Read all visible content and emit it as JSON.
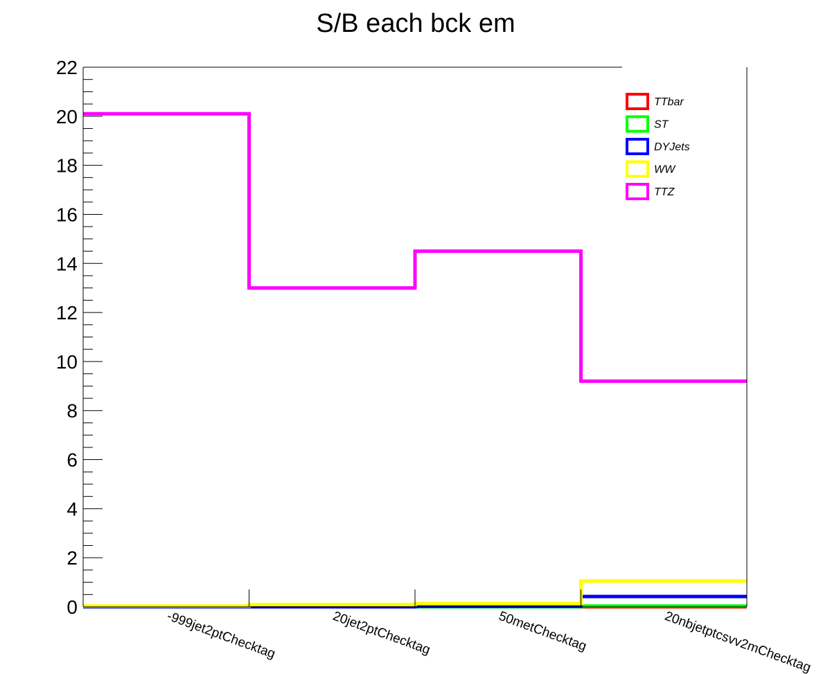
{
  "chart_data": {
    "type": "line",
    "title": "S/B each bck     em",
    "xlabel": "",
    "ylabel": "",
    "categories": [
      "-999jet2ptChecktag",
      "20jet2ptChecktag",
      "50metChecktag",
      "20nbjetptcsvv2mChecktag"
    ],
    "ylim": [
      0,
      22
    ],
    "yticks": [
      "0",
      "2",
      "4",
      "6",
      "8",
      "10",
      "12",
      "14",
      "16",
      "18",
      "20",
      "22"
    ],
    "grid": false,
    "legend_position": "top-right",
    "series": [
      {
        "name": "TTbar",
        "color": "#ff0000",
        "values": [
          0.0,
          0.0,
          0.0,
          0.0
        ]
      },
      {
        "name": "ST",
        "color": "#00ff00",
        "values": [
          0.0,
          0.0,
          0.0,
          0.03
        ]
      },
      {
        "name": "DYJets",
        "color": "#0000ff",
        "values": [
          0.0,
          0.0,
          0.02,
          0.42
        ]
      },
      {
        "name": "WW",
        "color": "#ffff00",
        "values": [
          0.03,
          0.09,
          0.13,
          1.05
        ]
      },
      {
        "name": "TTZ",
        "color": "#ff00ff",
        "values": [
          20.1,
          13.0,
          14.5,
          9.2
        ]
      }
    ]
  }
}
